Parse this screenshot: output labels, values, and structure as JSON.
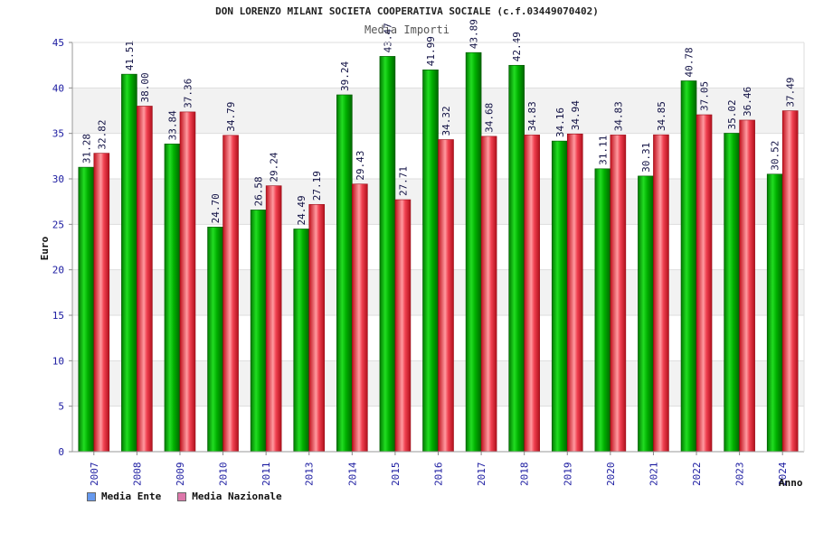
{
  "chart_data": {
    "type": "bar",
    "title": "DON LORENZO MILANI SOCIETA COOPERATIVA SOCIALE (c.f.03449070402)",
    "subtitle": "Media Importi",
    "xlabel": "Anno",
    "ylabel": "Euro",
    "ylim": [
      0,
      45
    ],
    "yticks": [
      0,
      5,
      10,
      15,
      20,
      25,
      30,
      35,
      40,
      45
    ],
    "grid": true,
    "legend_position": "bottom-left",
    "categories": [
      "2007",
      "2008",
      "2009",
      "2010",
      "2011",
      "2013",
      "2014",
      "2015",
      "2016",
      "2017",
      "2018",
      "2019",
      "2020",
      "2021",
      "2022",
      "2023",
      "2024"
    ],
    "series": [
      {
        "name": "Media Ente",
        "color": "#00aa00",
        "legend_color": "#6699ee",
        "values": [
          31.28,
          41.51,
          33.84,
          24.7,
          26.58,
          24.49,
          39.24,
          43.47,
          41.99,
          43.89,
          42.49,
          34.16,
          31.11,
          30.31,
          40.78,
          35.02,
          30.52
        ],
        "labels": [
          "31.28",
          "41.51",
          "33.84",
          "24.70",
          "26.58",
          "24.49",
          "39.24",
          "43.47",
          "41.99",
          "43.89",
          "42.49",
          "34.16",
          "31.11",
          "30.31",
          "40.78",
          "35.02",
          "30.52"
        ]
      },
      {
        "name": "Media Nazionale",
        "color": "#e02030",
        "legend_color": "#dd77aa",
        "values": [
          32.82,
          38.0,
          37.36,
          34.79,
          29.24,
          27.19,
          29.43,
          27.71,
          34.32,
          34.68,
          34.83,
          34.94,
          34.83,
          34.85,
          37.05,
          36.46,
          37.49
        ],
        "labels": [
          "32.82",
          "38.00",
          "37.36",
          "34.79",
          "29.24",
          "27.19",
          "29.43",
          "27.71",
          "34.32",
          "34.68",
          "34.83",
          "34.94",
          "34.83",
          "34.85",
          "37.05",
          "36.46",
          "37.49"
        ]
      }
    ]
  }
}
